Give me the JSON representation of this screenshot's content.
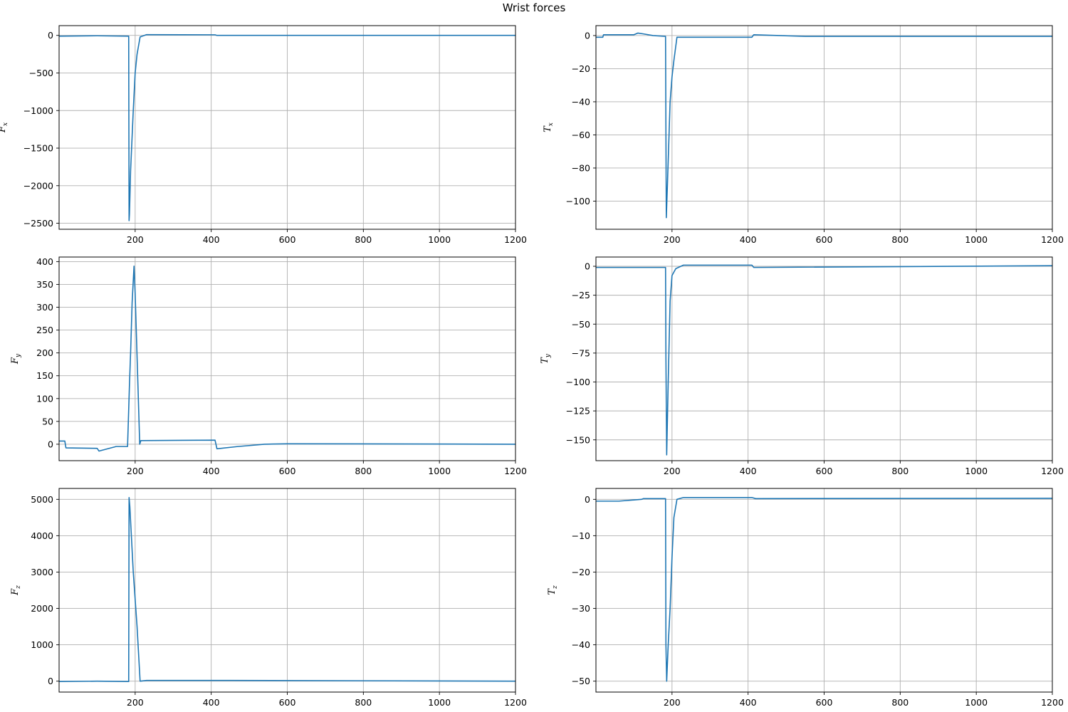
{
  "figure": {
    "title": "Wrist forces"
  },
  "chart_data": [
    {
      "type": "line",
      "ylabel": "F",
      "ylabel_sub": "x",
      "xlim": [
        0,
        1200
      ],
      "ylim": [
        -2580,
        130
      ],
      "xticks": [
        200,
        400,
        600,
        800,
        1000,
        1200
      ],
      "yticks": [
        0,
        -500,
        -1000,
        -1500,
        -2000,
        -2500
      ],
      "ytick_labels": [
        "0",
        "−500",
        "−1000",
        "−1500",
        "−2000",
        "−2500"
      ],
      "grid": true,
      "series": [
        {
          "color": "#1f77b4",
          "x": [
            1,
            100,
            183,
            184,
            185,
            188,
            195,
            200,
            205,
            213,
            230,
            410,
            415,
            500,
            1200
          ],
          "y": [
            -10,
            -5,
            -10,
            -2465,
            -2380,
            -1800,
            -1000,
            -500,
            -250,
            -20,
            10,
            8,
            0,
            0,
            0
          ]
        }
      ]
    },
    {
      "type": "line",
      "ylabel": "T",
      "ylabel_sub": "x",
      "xlim": [
        0,
        1200
      ],
      "ylim": [
        -117,
        6
      ],
      "xticks": [
        200,
        400,
        600,
        800,
        1000,
        1200
      ],
      "yticks": [
        0,
        -20,
        -40,
        -60,
        -80,
        -100
      ],
      "ytick_labels": [
        "0",
        "−20",
        "−40",
        "−60",
        "−80",
        "−100"
      ],
      "grid": true,
      "series": [
        {
          "color": "#1f77b4",
          "x": [
            1,
            18,
            20,
            100,
            110,
            125,
            150,
            183,
            184,
            185,
            188,
            195,
            200,
            205,
            213,
            410,
            415,
            550,
            1200
          ],
          "y": [
            -1,
            -1,
            0.5,
            0.5,
            1.5,
            1,
            0,
            -0.5,
            -60,
            -110,
            -90,
            -40,
            -25,
            -15,
            -1,
            -1,
            0.5,
            -0.5,
            -0.5
          ]
        }
      ]
    },
    {
      "type": "line",
      "ylabel": "F",
      "ylabel_sub": "y",
      "xlim": [
        0,
        1200
      ],
      "ylim": [
        -36,
        410
      ],
      "xticks": [
        200,
        400,
        600,
        800,
        1000,
        1200
      ],
      "yticks": [
        0,
        50,
        100,
        150,
        200,
        250,
        300,
        350,
        400
      ],
      "ytick_labels": [
        "0",
        "50",
        "100",
        "150",
        "200",
        "250",
        "300",
        "350",
        "400"
      ],
      "grid": true,
      "series": [
        {
          "color": "#1f77b4",
          "x": [
            1,
            15,
            18,
            100,
            105,
            150,
            180,
            185,
            188,
            192,
            197,
            200,
            212,
            215,
            410,
            415,
            470,
            540,
            600,
            1200
          ],
          "y": [
            7,
            7,
            -8,
            -9,
            -15,
            -5,
            -5,
            130,
            200,
            310,
            390,
            330,
            0,
            8,
            9,
            -10,
            -5,
            0,
            1,
            0
          ]
        }
      ]
    },
    {
      "type": "line",
      "ylabel": "T",
      "ylabel_sub": "y",
      "xlim": [
        0,
        1200
      ],
      "ylim": [
        -168,
        8
      ],
      "xticks": [
        200,
        400,
        600,
        800,
        1000,
        1200
      ],
      "yticks": [
        0,
        -25,
        -50,
        -75,
        -100,
        -125,
        -150
      ],
      "ytick_labels": [
        "0",
        "−25",
        "−50",
        "−75",
        "−100",
        "−125",
        "−150"
      ],
      "grid": true,
      "series": [
        {
          "color": "#1f77b4",
          "x": [
            1,
            183,
            184,
            186,
            190,
            195,
            200,
            210,
            230,
            410,
            415,
            1200
          ],
          "y": [
            -1,
            -1,
            -80,
            -163,
            -100,
            -30,
            -8,
            -2,
            1,
            1,
            -1,
            0.5
          ]
        }
      ]
    },
    {
      "type": "line",
      "ylabel": "F",
      "ylabel_sub": "z",
      "xlim": [
        0,
        1200
      ],
      "ylim": [
        -300,
        5300
      ],
      "xticks": [
        200,
        400,
        600,
        800,
        1000,
        1200
      ],
      "yticks": [
        0,
        1000,
        2000,
        3000,
        4000,
        5000
      ],
      "ytick_labels": [
        "0",
        "1000",
        "2000",
        "3000",
        "4000",
        "5000"
      ],
      "grid": true,
      "series": [
        {
          "color": "#1f77b4",
          "x": [
            1,
            100,
            183,
            184,
            186,
            195,
            205,
            213,
            230,
            450,
            1200
          ],
          "y": [
            -10,
            0,
            -10,
            5050,
            4800,
            3000,
            1500,
            0,
            20,
            20,
            0
          ]
        }
      ]
    },
    {
      "type": "line",
      "ylabel": "T",
      "ylabel_sub": "z",
      "xlim": [
        0,
        1200
      ],
      "ylim": [
        -53,
        3
      ],
      "xticks": [
        200,
        400,
        600,
        800,
        1000,
        1200
      ],
      "yticks": [
        0,
        -10,
        -20,
        -30,
        -40,
        -50
      ],
      "ytick_labels": [
        "0",
        "−10",
        "−20",
        "−30",
        "−40",
        "−50"
      ],
      "grid": true,
      "series": [
        {
          "color": "#1f77b4",
          "x": [
            1,
            60,
            120,
            125,
            183,
            184,
            186,
            190,
            195,
            200,
            205,
            213,
            230,
            410,
            420,
            1200
          ],
          "y": [
            -0.5,
            -0.5,
            0,
            0.2,
            0.2,
            -40,
            -50,
            -40,
            -30,
            -16,
            -5,
            0,
            0.5,
            0.5,
            0.2,
            0.3
          ]
        }
      ]
    }
  ]
}
